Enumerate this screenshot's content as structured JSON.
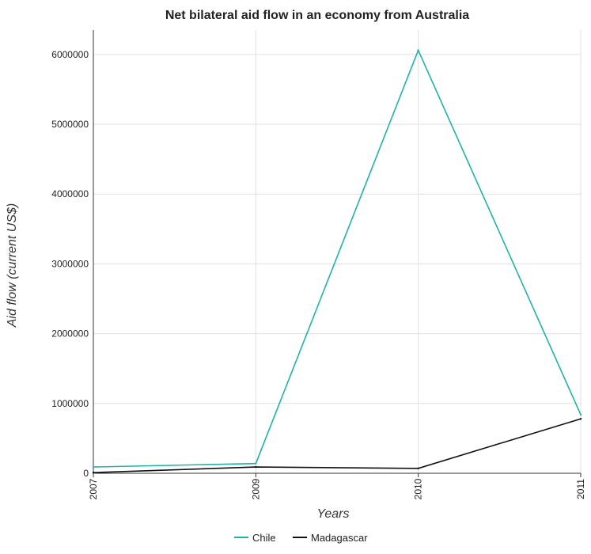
{
  "chart_data": {
    "type": "line",
    "title": "Net bilateral aid flow in an economy from Australia",
    "xlabel": "Years",
    "ylabel": "Aid flow (current US$)",
    "categories": [
      "2007",
      "2009",
      "2010",
      "2011"
    ],
    "y_ticks": [
      "0",
      "1000000",
      "2000000",
      "3000000",
      "4000000",
      "5000000",
      "6000000"
    ],
    "ylim": [
      0,
      6350000
    ],
    "grid": true,
    "legend_position": "bottom-center",
    "series": [
      {
        "name": "Chile",
        "color": "#20b2aa",
        "values": [
          90000,
          140000,
          6060000,
          840000
        ]
      },
      {
        "name": "Madagascar",
        "color": "#111111",
        "values": [
          10000,
          90000,
          70000,
          780000
        ]
      }
    ]
  }
}
